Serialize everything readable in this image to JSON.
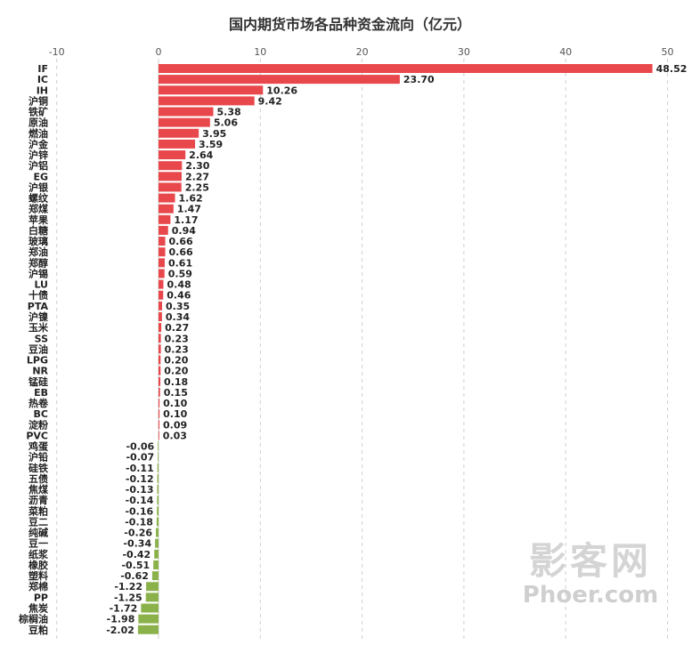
{
  "title": "国内期货市场各品种资金流向（亿元）",
  "watermark": {
    "line1": "影客网",
    "line2": "Phoer.com"
  },
  "colors": {
    "positive": "#e8474c",
    "negative": "#8bb24a"
  },
  "chart_data": {
    "type": "bar",
    "orientation": "horizontal",
    "title": "国内期货市场各品种资金流向（亿元）",
    "xlim": [
      -10,
      50
    ],
    "xticks": [
      "-10",
      "0",
      "10",
      "20",
      "30",
      "40",
      "50"
    ],
    "grid": true,
    "categories": [
      "IF",
      "IC",
      "IH",
      "沪铜",
      "铁矿",
      "原油",
      "燃油",
      "沪金",
      "沪锌",
      "沪铝",
      "EG",
      "沪银",
      "螺纹",
      "郑煤",
      "苹果",
      "白糖",
      "玻璃",
      "郑油",
      "郑醇",
      "沪锡",
      "LU",
      "十债",
      "PTA",
      "沪镍",
      "玉米",
      "SS",
      "豆油",
      "LPG",
      "NR",
      "锰硅",
      "EB",
      "热卷",
      "BC",
      "淀粉",
      "PVC",
      "鸡蛋",
      "沪铅",
      "硅铁",
      "五债",
      "焦煤",
      "沥青",
      "菜粕",
      "豆二",
      "纯碱",
      "豆一",
      "纸浆",
      "橡胶",
      "塑料",
      "郑棉",
      "PP",
      "焦炭",
      "棕榈油",
      "豆粕"
    ],
    "values": [
      48.52,
      23.7,
      10.26,
      9.42,
      5.38,
      5.06,
      3.95,
      3.59,
      2.64,
      2.3,
      2.27,
      2.25,
      1.62,
      1.47,
      1.17,
      0.94,
      0.66,
      0.66,
      0.61,
      0.59,
      0.48,
      0.46,
      0.35,
      0.34,
      0.27,
      0.23,
      0.23,
      0.2,
      0.2,
      0.18,
      0.15,
      0.1,
      0.1,
      0.09,
      0.03,
      -0.06,
      -0.07,
      -0.11,
      -0.12,
      -0.13,
      -0.14,
      -0.16,
      -0.18,
      -0.26,
      -0.34,
      -0.42,
      -0.51,
      -0.62,
      -1.22,
      -1.25,
      -1.72,
      -1.98,
      -2.02
    ],
    "value_labels": [
      "48.52",
      "23.70",
      "10.26",
      "9.42",
      "5.38",
      "5.06",
      "3.95",
      "3.59",
      "2.64",
      "2.30",
      "2.27",
      "2.25",
      "1.62",
      "1.47",
      "1.17",
      "0.94",
      "0.66",
      "0.66",
      "0.61",
      "0.59",
      "0.48",
      "0.46",
      "0.35",
      "0.34",
      "0.27",
      "0.23",
      "0.23",
      "0.20",
      "0.20",
      "0.18",
      "0.15",
      "0.10",
      "0.10",
      "0.09",
      "0.03",
      "-0.06",
      "-0.07",
      "-0.11",
      "-0.12",
      "-0.13",
      "-0.14",
      "-0.16",
      "-0.18",
      "-0.26",
      "-0.34",
      "-0.42",
      "-0.51",
      "-0.62",
      "-1.22",
      "-1.25",
      "-1.72",
      "-1.98",
      "-2.02"
    ]
  }
}
